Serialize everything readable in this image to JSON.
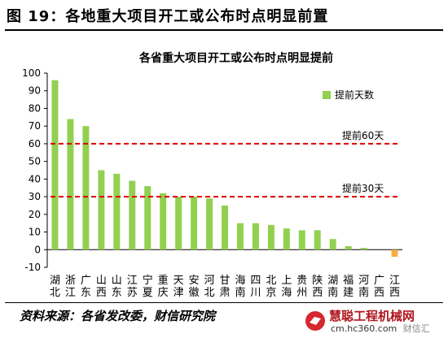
{
  "figure_title": "图 19：各地重大项目开工或公布时点明显前置",
  "source_note": "资料来源：各省发改委，财信研究院",
  "watermark": {
    "brand": "慧聪工程机械网",
    "url": "cm.hc360.com",
    "sub": "财信汇"
  },
  "colors": {
    "bar": "#92d050",
    "bar_negative": "#f5b041",
    "reference_line": "#e00000",
    "grid": "#000000"
  },
  "chart_data": {
    "type": "bar",
    "title": "各省重大项目开工或公布时点明显提前",
    "categories": [
      "湖北",
      "浙江",
      "广东",
      "山西",
      "山东",
      "江苏",
      "宁夏",
      "重庆",
      "天津",
      "安徽",
      "河北",
      "甘肃",
      "海南",
      "四川",
      "北京",
      "上海",
      "贵州",
      "陕西",
      "湖南",
      "福建",
      "河南",
      "广西",
      "江西"
    ],
    "series": [
      {
        "name": "提前天数",
        "values": [
          96,
          74,
          70,
          45,
          43,
          39,
          36,
          32,
          30,
          30,
          29,
          25,
          15,
          15,
          14,
          12,
          11,
          11,
          6,
          2,
          1,
          0,
          -4
        ]
      }
    ],
    "ylim": [
      -10,
      100
    ],
    "yticks": [
      -10,
      0,
      10,
      20,
      30,
      40,
      50,
      60,
      70,
      80,
      90,
      100
    ],
    "reference_lines": [
      {
        "value": 60,
        "label": "提前60天"
      },
      {
        "value": 30,
        "label": "提前30天"
      }
    ],
    "legend": "top-right",
    "xlabel": "",
    "ylabel": ""
  }
}
